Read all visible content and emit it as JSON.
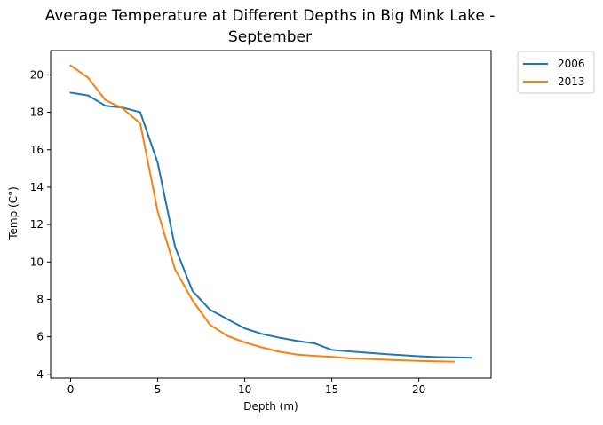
{
  "chart_data": {
    "type": "line",
    "title_line1": "Average Temperature at Different Depths in Big Mink Lake -",
    "title_line2": "September",
    "xlabel": "Depth (m)",
    "ylabel": "Temp (C°)",
    "xlim": [
      -1.15,
      24.15
    ],
    "ylim": [
      3.8,
      21.3
    ],
    "xticks": [
      0,
      5,
      10,
      15,
      20
    ],
    "yticks": [
      4,
      6,
      8,
      10,
      12,
      14,
      16,
      18,
      20
    ],
    "grid": false,
    "legend_position": "outside top-right",
    "series": [
      {
        "name": "2006",
        "color": "#1f77b4",
        "x": [
          0,
          1,
          2,
          3,
          4,
          5,
          6,
          7,
          8,
          9,
          10,
          11,
          12,
          13,
          14,
          15,
          16,
          17,
          18,
          19,
          20,
          21,
          22,
          23
        ],
        "y": [
          19.05,
          18.9,
          18.35,
          18.25,
          18.0,
          15.3,
          10.8,
          8.45,
          7.45,
          6.95,
          6.45,
          6.15,
          5.95,
          5.78,
          5.65,
          5.3,
          5.22,
          5.15,
          5.08,
          5.02,
          4.96,
          4.92,
          4.9,
          4.88
        ]
      },
      {
        "name": "2013",
        "color": "#ff7f0e",
        "x": [
          0,
          1,
          2,
          3,
          4,
          5,
          6,
          7,
          8,
          9,
          10,
          11,
          12,
          13,
          14,
          15,
          16,
          17,
          18,
          19,
          20,
          21,
          22
        ],
        "y": [
          20.5,
          19.85,
          18.65,
          18.2,
          17.4,
          12.7,
          9.6,
          7.95,
          6.65,
          6.05,
          5.7,
          5.43,
          5.2,
          5.05,
          4.98,
          4.93,
          4.85,
          4.82,
          4.78,
          4.74,
          4.71,
          4.69,
          4.67
        ]
      }
    ]
  }
}
